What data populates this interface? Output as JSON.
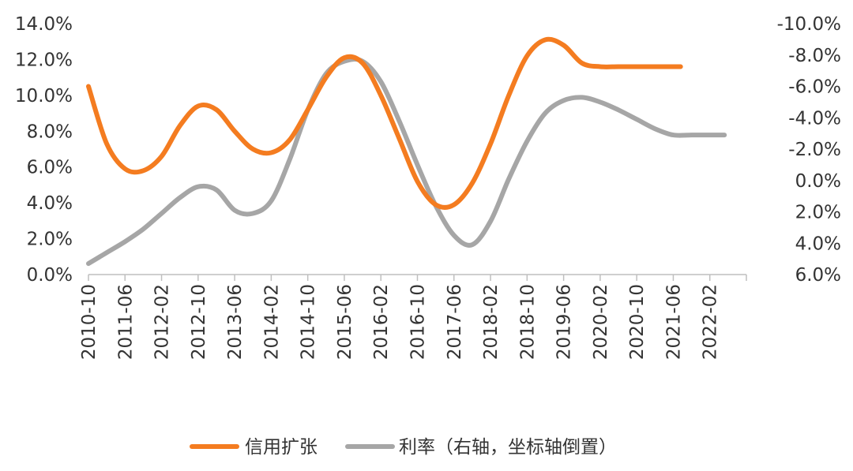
{
  "chart_data": {
    "type": "line",
    "x_ticks": [
      "2010-10",
      "2011-06",
      "2012-02",
      "2012-10",
      "2013-06",
      "2014-02",
      "2014-10",
      "2015-06",
      "2016-02",
      "2016-10",
      "2017-06",
      "2018-02",
      "2018-10",
      "2019-06",
      "2020-02",
      "2020-10",
      "2021-06",
      "2022-02"
    ],
    "y_left": {
      "ticks": [
        "0.0%",
        "2.0%",
        "4.0%",
        "6.0%",
        "8.0%",
        "10.0%",
        "12.0%",
        "14.0%"
      ],
      "ylim": [
        0,
        14
      ]
    },
    "y_right": {
      "ticks": [
        "6.0%",
        "4.0%",
        "2.0%",
        "0.0%",
        "-2.0%",
        "-4.0%",
        "-6.0%",
        "-8.0%",
        "-10.0%"
      ],
      "ylim": [
        6,
        -10
      ],
      "inverted": true
    },
    "grid": false,
    "legend_position": "bottom",
    "series": [
      {
        "name": "信用扩张",
        "axis": "left",
        "color": "#F47C20",
        "x": [
          0,
          0.5,
          1,
          1.5,
          2,
          2.5,
          3,
          3.5,
          4,
          4.5,
          5,
          5.5,
          6,
          6.5,
          7,
          7.5,
          8,
          8.5,
          9,
          9.5,
          10,
          10.5,
          11,
          11.5,
          12,
          12.5,
          13,
          13.5,
          14,
          14.5,
          15,
          15.5,
          16,
          16.2
        ],
        "values": [
          10.5,
          7.3,
          5.9,
          5.8,
          6.6,
          8.3,
          9.4,
          9.2,
          8.0,
          7.0,
          6.8,
          7.5,
          9.2,
          11.0,
          12.1,
          11.8,
          10.0,
          7.6,
          5.2,
          3.9,
          3.9,
          5.1,
          7.3,
          10.0,
          12.2,
          13.1,
          12.8,
          11.8,
          11.6,
          11.6,
          11.6,
          11.6,
          11.6,
          11.6
        ]
      },
      {
        "name": "利率（右轴，坐标轴倒置）",
        "axis": "right",
        "color": "#A6A6A6",
        "x": [
          0,
          0.5,
          1,
          1.5,
          2,
          2.5,
          3,
          3.5,
          4,
          4.5,
          5,
          5.5,
          6,
          6.5,
          7,
          7.5,
          8,
          8.5,
          9,
          9.5,
          10,
          10.5,
          11,
          11.5,
          12,
          12.5,
          13,
          13.5,
          14,
          14.5,
          15,
          15.5,
          16,
          16.5,
          17,
          17.4
        ],
        "values": [
          5.3,
          4.6,
          3.9,
          3.1,
          2.1,
          1.1,
          0.4,
          0.6,
          1.9,
          2.1,
          1.3,
          -1.3,
          -4.5,
          -6.8,
          -7.6,
          -7.6,
          -6.3,
          -3.8,
          -1.0,
          1.6,
          3.5,
          4.1,
          2.6,
          -0.1,
          -2.5,
          -4.3,
          -5.1,
          -5.3,
          -5.0,
          -4.5,
          -3.9,
          -3.3,
          -2.9,
          -2.9,
          -2.9,
          -2.9
        ]
      }
    ]
  }
}
